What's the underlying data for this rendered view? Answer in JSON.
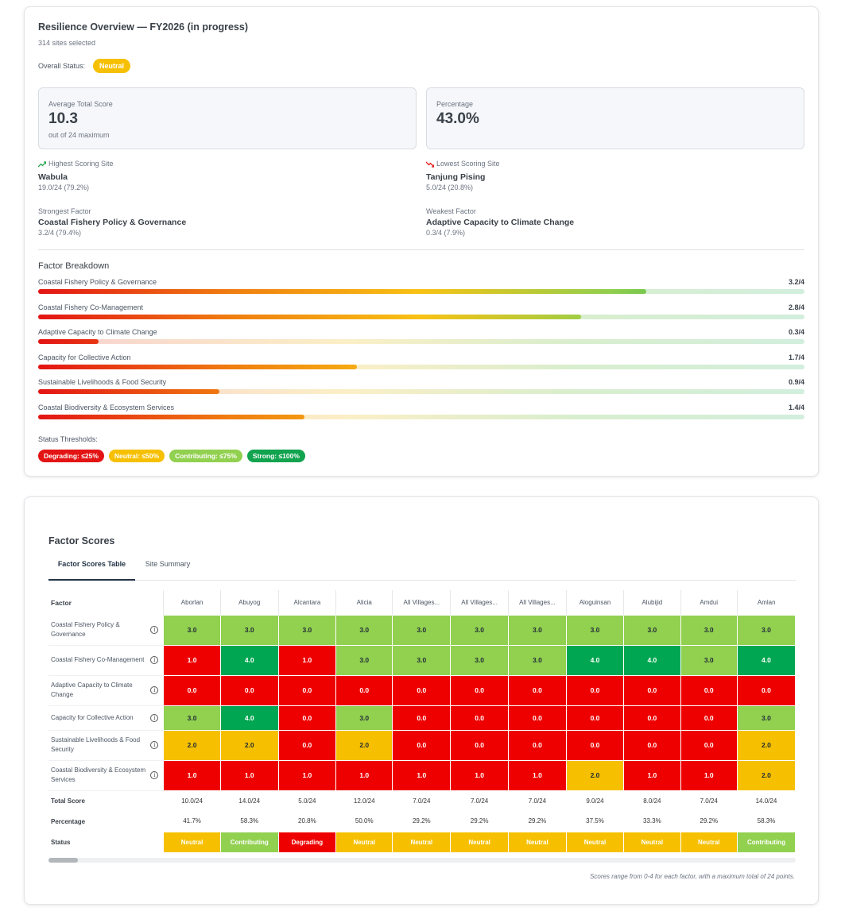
{
  "overview": {
    "title": "Resilience Overview — FY2026 (in progress)",
    "sites_selected": "314 sites selected",
    "overall_status_label": "Overall Status:",
    "overall_status": "Neutral",
    "avg_score": {
      "label": "Average Total Score",
      "value": "10.3",
      "note": "out of 24 maximum"
    },
    "percentage": {
      "label": "Percentage",
      "value": "43.0%"
    },
    "highest_site": {
      "label": "Highest Scoring Site",
      "name": "Wabula",
      "value": "19.0/24 (79.2%)"
    },
    "lowest_site": {
      "label": "Lowest Scoring Site",
      "name": "Tanjung Pising",
      "value": "5.0/24 (20.8%)"
    },
    "strongest_factor": {
      "label": "Strongest Factor",
      "name": "Coastal Fishery Policy & Governance",
      "value": "3.2/4 (79.4%)"
    },
    "weakest_factor": {
      "label": "Weakest Factor",
      "name": "Adaptive Capacity to Climate Change",
      "value": "0.3/4 (7.9%)"
    },
    "factor_breakdown_title": "Factor Breakdown",
    "factors": [
      {
        "name": "Coastal Fishery Policy & Governance",
        "score": "3.2/4",
        "fraction": 0.794
      },
      {
        "name": "Coastal Fishery Co-Management",
        "score": "2.8/4",
        "fraction": 0.709
      },
      {
        "name": "Adaptive Capacity to Climate Change",
        "score": "0.3/4",
        "fraction": 0.079
      },
      {
        "name": "Capacity for Collective Action",
        "score": "1.7/4",
        "fraction": 0.416
      },
      {
        "name": "Sustainable Livelihoods & Food Security",
        "score": "0.9/4",
        "fraction": 0.237
      },
      {
        "name": "Coastal Biodiversity & Ecosystem Services",
        "score": "1.4/4",
        "fraction": 0.347
      }
    ],
    "thresholds_label": "Status Thresholds:",
    "thresholds": [
      {
        "label": "Degrading: ≤25%",
        "color": "#e31414"
      },
      {
        "label": "Neutral: ≤50%",
        "color": "#f6c000"
      },
      {
        "label": "Contributing: ≤75%",
        "color": "#92d050"
      },
      {
        "label": "Strong: ≤100%",
        "color": "#12a34f"
      }
    ]
  },
  "scores": {
    "title": "Factor Scores",
    "tabs": [
      "Factor Scores Table",
      "Site Summary"
    ],
    "factor_header": "Factor",
    "sites": [
      "Aborlan",
      "Abuyog",
      "Alcantara",
      "Alicia",
      "All Villages...",
      "All Villages...",
      "All Villages...",
      "Aloguinsan",
      "Alubijid",
      "Amdui",
      "Amlan"
    ],
    "rows": [
      {
        "factor": "Coastal Fishery Policy & Governance",
        "values": [
          "3.0",
          "3.0",
          "3.0",
          "3.0",
          "3.0",
          "3.0",
          "3.0",
          "3.0",
          "3.0",
          "3.0",
          "3.0"
        ]
      },
      {
        "factor": "Coastal Fishery Co-Management",
        "values": [
          "1.0",
          "4.0",
          "1.0",
          "3.0",
          "3.0",
          "3.0",
          "3.0",
          "4.0",
          "4.0",
          "3.0",
          "4.0"
        ]
      },
      {
        "factor": "Adaptive Capacity to Climate Change",
        "values": [
          "0.0",
          "0.0",
          "0.0",
          "0.0",
          "0.0",
          "0.0",
          "0.0",
          "0.0",
          "0.0",
          "0.0",
          "0.0"
        ]
      },
      {
        "factor": "Capacity for Collective Action",
        "values": [
          "3.0",
          "4.0",
          "0.0",
          "3.0",
          "0.0",
          "0.0",
          "0.0",
          "0.0",
          "0.0",
          "0.0",
          "3.0"
        ]
      },
      {
        "factor": "Sustainable Livelihoods & Food Security",
        "values": [
          "2.0",
          "2.0",
          "0.0",
          "2.0",
          "0.0",
          "0.0",
          "0.0",
          "0.0",
          "0.0",
          "0.0",
          "2.0"
        ]
      },
      {
        "factor": "Coastal Biodiversity & Ecosystem Services",
        "values": [
          "1.0",
          "1.0",
          "1.0",
          "1.0",
          "1.0",
          "1.0",
          "1.0",
          "2.0",
          "1.0",
          "1.0",
          "2.0"
        ]
      }
    ],
    "total_label": "Total Score",
    "totals": [
      "10.0/24",
      "14.0/24",
      "5.0/24",
      "12.0/24",
      "7.0/24",
      "7.0/24",
      "7.0/24",
      "9.0/24",
      "8.0/24",
      "7.0/24",
      "14.0/24"
    ],
    "percentage_label": "Percentage",
    "percentages": [
      "41.7%",
      "58.3%",
      "20.8%",
      "50.0%",
      "29.2%",
      "29.2%",
      "29.2%",
      "37.5%",
      "33.3%",
      "29.2%",
      "58.3%"
    ],
    "status_label": "Status",
    "statuses": [
      "Neutral",
      "Contributing",
      "Degrading",
      "Neutral",
      "Neutral",
      "Neutral",
      "Neutral",
      "Neutral",
      "Neutral",
      "Neutral",
      "Contributing"
    ],
    "footnote": "Scores range from 0-4 for each factor, with a maximum total of 24 points."
  }
}
